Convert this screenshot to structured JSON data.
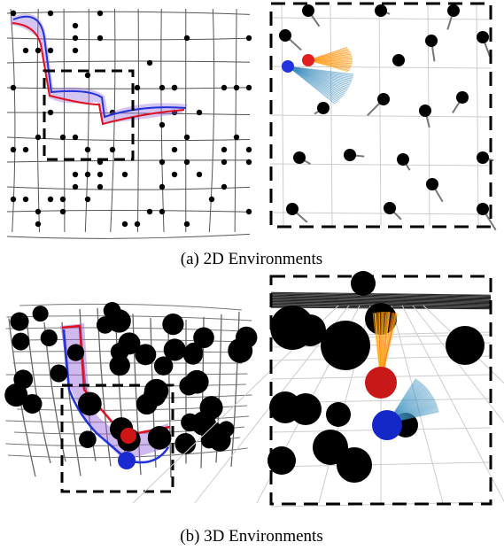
{
  "figure": {
    "panels": [
      {
        "caption": "(a) 2D Environments"
      },
      {
        "caption": "(b) 3D Environments"
      }
    ]
  }
}
